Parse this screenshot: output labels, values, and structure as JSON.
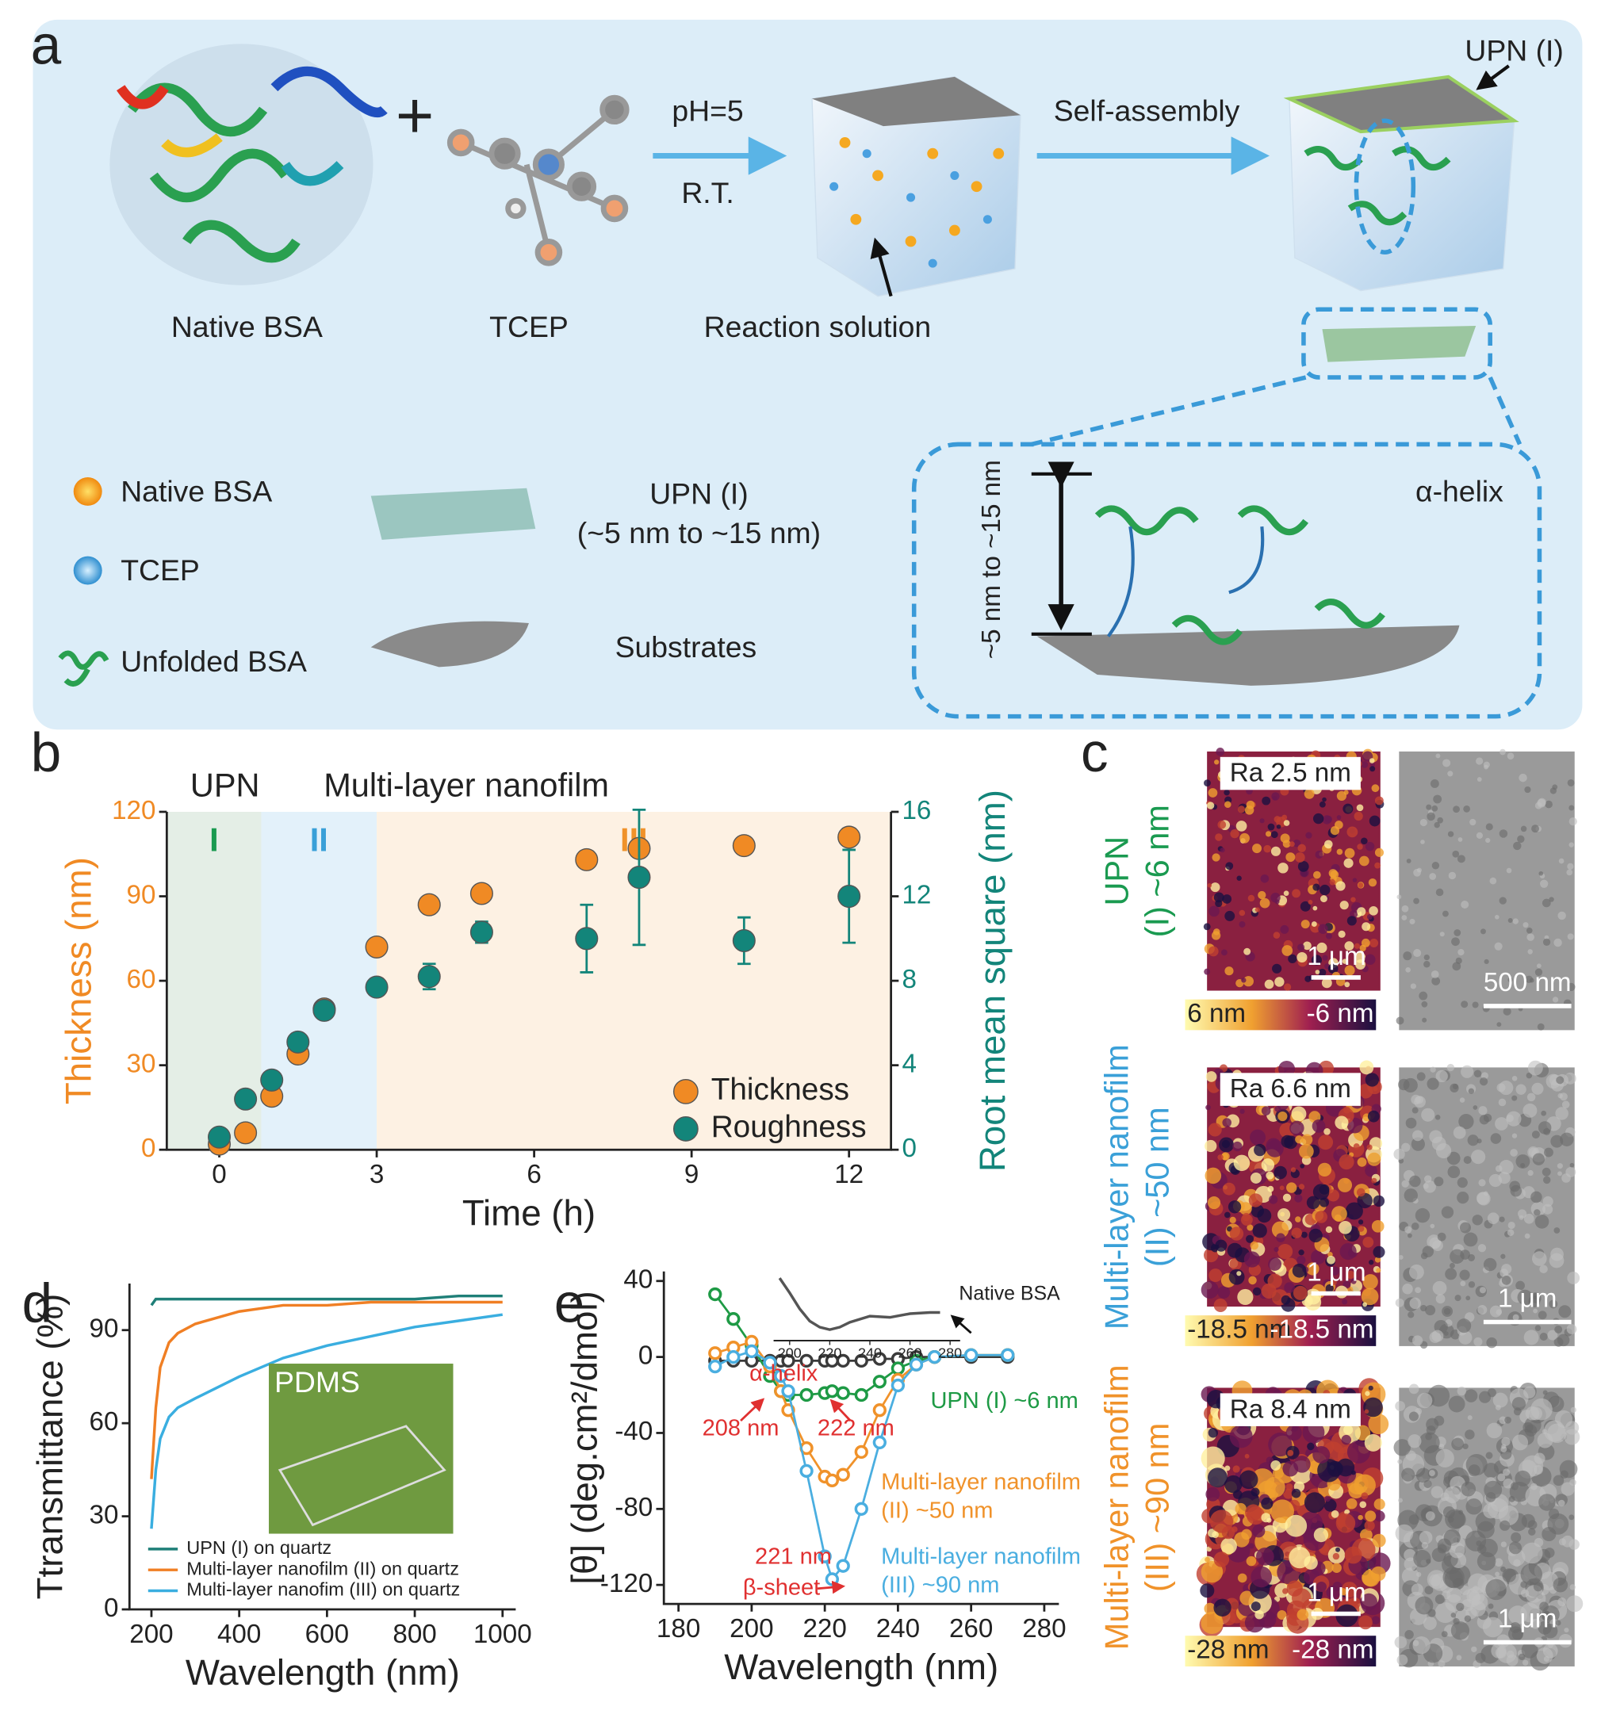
{
  "panel_labels": [
    "a",
    "b",
    "c",
    "d",
    "e"
  ],
  "panel_a": {
    "native_bsa": "Native BSA",
    "tcep": "TCEP",
    "ph": "pH=5",
    "rt": "R.T.",
    "reaction": "Reaction solution",
    "self_assembly": "Self-assembly",
    "upn": "UPN (I)",
    "legend": {
      "native_bsa": "Native BSA",
      "tcep": "TCEP",
      "unfolded": "Unfolded BSA",
      "upn": "UPN (I)",
      "upn_range": "(~5 nm to ~15 nm)",
      "substrates": "Substrates"
    },
    "inset": {
      "thickness": "~5 nm to ~15 nm",
      "helix": "α-helix"
    }
  },
  "panel_c": {
    "rows": [
      {
        "label_1": "UPN",
        "label_2": "(I) ~6 nm",
        "color": "#1a9a50",
        "ra": "Ra 2.5 nm",
        "afm_scale": "1 μm",
        "bar_left": "6 nm",
        "bar_right": "-6 nm",
        "tem_scale": "500 nm"
      },
      {
        "label_1": "Multi-layer nanofilm",
        "label_2": "(II) ~50 nm",
        "color": "#3aa0d8",
        "ra": "Ra 6.6 nm",
        "afm_scale": "1 μm",
        "bar_left": "-18.5 nm",
        "bar_right": "-18.5 nm",
        "tem_scale": "1 μm"
      },
      {
        "label_1": "Multi-layer nanofilm",
        "label_2": "(III) ~90 nm",
        "color": "#f0922a",
        "ra": "Ra 8.4 nm",
        "afm_scale": "1 μm",
        "bar_left": "-28 nm",
        "bar_right": "-28 nm",
        "tem_scale": "1 μm"
      }
    ]
  },
  "chart_data": [
    {
      "type": "scatter",
      "x_label": "Time (h)",
      "y_label": "Thickness (nm)",
      "y2_label": "Root mean square (nm)",
      "headers": [
        "UPN",
        "Multi-layer nanofilm"
      ],
      "regions": [
        {
          "label": "I",
          "start": -1,
          "end": 0.8,
          "color": "#e4eee6",
          "label_color": "#1a9a50"
        },
        {
          "label": "II",
          "start": 0.8,
          "end": 3,
          "color": "#e3f1fa",
          "label_color": "#3aa0d8"
        },
        {
          "label": "III",
          "start": 3,
          "end": 12.8,
          "color": "#fdf1e3",
          "label_color": "#f0922a"
        }
      ],
      "x": [
        0,
        0.5,
        1,
        1.5,
        2,
        3,
        4,
        5,
        7,
        8,
        10,
        12
      ],
      "xlim": [
        -1,
        12.8
      ],
      "xticks": [
        0,
        3,
        6,
        9,
        12
      ],
      "ylim": [
        0,
        120
      ],
      "yticks": [
        0,
        30,
        60,
        90,
        120
      ],
      "y2lim": [
        0,
        16
      ],
      "y2ticks": [
        0,
        4,
        8,
        12,
        16
      ],
      "legend": "lower right",
      "series": [
        {
          "name": "Thickness",
          "color": "#f08a24",
          "values": [
            2,
            6,
            19,
            34,
            50,
            72,
            87,
            91,
            103,
            107,
            108,
            111
          ]
        },
        {
          "name": "Roughness",
          "color": "#13857a",
          "axis": "y2",
          "values": [
            0.6,
            2.4,
            3.3,
            5.1,
            6.6,
            7.7,
            8.2,
            10.3,
            10,
            12.9,
            9.9,
            12
          ],
          "errors": [
            0,
            0,
            0,
            0.3,
            0.4,
            0.2,
            0.6,
            0.5,
            1.6,
            3.2,
            1.1,
            2.2
          ]
        }
      ]
    },
    {
      "type": "line",
      "x_label": "Wavelength (nm)",
      "y_label": "Ttransmittance (%)",
      "inset_label": "PDMS",
      "x": [
        200,
        210,
        220,
        240,
        260,
        300,
        400,
        500,
        600,
        700,
        800,
        900,
        1000
      ],
      "xlim": [
        150,
        1030
      ],
      "xticks": [
        200,
        400,
        600,
        800,
        1000
      ],
      "ylim": [
        0,
        105
      ],
      "yticks": [
        0,
        30,
        60,
        90
      ],
      "legend": "lower left",
      "series": [
        {
          "name": "UPN (I) on quartz",
          "color": "#1f7f78",
          "values": [
            98,
            100,
            100,
            100,
            100,
            100,
            100,
            100,
            100,
            100,
            100,
            101,
            101
          ]
        },
        {
          "name": "Multi-layer nanofilm (II) on quartz",
          "color": "#f07f24",
          "values": [
            42,
            65,
            78,
            86,
            89,
            92,
            96,
            98,
            98,
            99,
            99,
            99,
            99
          ]
        },
        {
          "name": "Multi-layer nanofim (III) on quartz",
          "color": "#3aaee0",
          "values": [
            26,
            45,
            55,
            62,
            65,
            68,
            75,
            81,
            85,
            88,
            91,
            93,
            95
          ]
        }
      ]
    },
    {
      "type": "line",
      "markers": true,
      "x_label": "Wavelength (nm)",
      "y_label": "[θ] (deg.cm²/dmol)",
      "x": [
        190,
        195,
        200,
        205,
        208,
        210,
        215,
        220,
        222,
        225,
        230,
        235,
        240,
        245,
        250,
        260,
        270
      ],
      "xlim": [
        176,
        284
      ],
      "xticks": [
        180,
        200,
        220,
        240,
        260,
        280
      ],
      "ylim": [
        -130,
        45
      ],
      "yticks": [
        -120,
        -80,
        -40,
        0,
        40
      ],
      "series": [
        {
          "color": "#3b3b3b",
          "values": [
            -2,
            -2,
            -2,
            -2,
            -2,
            -2,
            -2,
            -2,
            -2,
            -2,
            -2,
            -1,
            -1,
            0,
            0,
            0,
            0
          ]
        },
        {
          "label": [
            "UPN (I) ~6 nm"
          ],
          "color": "#1e9a45",
          "values": [
            33,
            20,
            6,
            -10,
            -18,
            -20,
            -20,
            -19,
            -18,
            -19,
            -20,
            -13,
            -6,
            -2,
            0,
            1,
            1
          ]
        },
        {
          "label": [
            "Multi-layer nanofilm",
            "(II) ~50 nm"
          ],
          "color": "#f0922a",
          "values": [
            2,
            5,
            8,
            -5,
            -18,
            -28,
            -48,
            -63,
            -65,
            -62,
            -50,
            -28,
            -12,
            -4,
            0,
            1,
            1
          ]
        },
        {
          "label": [
            "Multi-layer nanofilm",
            "(III) ~90 nm"
          ],
          "color": "#4aaee0",
          "values": [
            -5,
            0,
            3,
            -3,
            -10,
            -18,
            -60,
            -105,
            -117,
            -110,
            -80,
            -45,
            -15,
            -4,
            0,
            1,
            1
          ]
        }
      ],
      "annotations": [
        "α-helix",
        "208 nm",
        "222 nm",
        "221 nm",
        "β-sheet"
      ],
      "inset": {
        "label": "Native BSA",
        "x": [
          195,
          200,
          205,
          210,
          215,
          220,
          225,
          230,
          240,
          250,
          260,
          270,
          275
        ],
        "values": [
          40,
          28,
          15,
          5,
          0,
          -2,
          0,
          4,
          9,
          8,
          11,
          12,
          12
        ],
        "xticks": [
          200,
          220,
          240,
          260,
          280
        ],
        "xlim": [
          192,
          285
        ]
      }
    }
  ]
}
